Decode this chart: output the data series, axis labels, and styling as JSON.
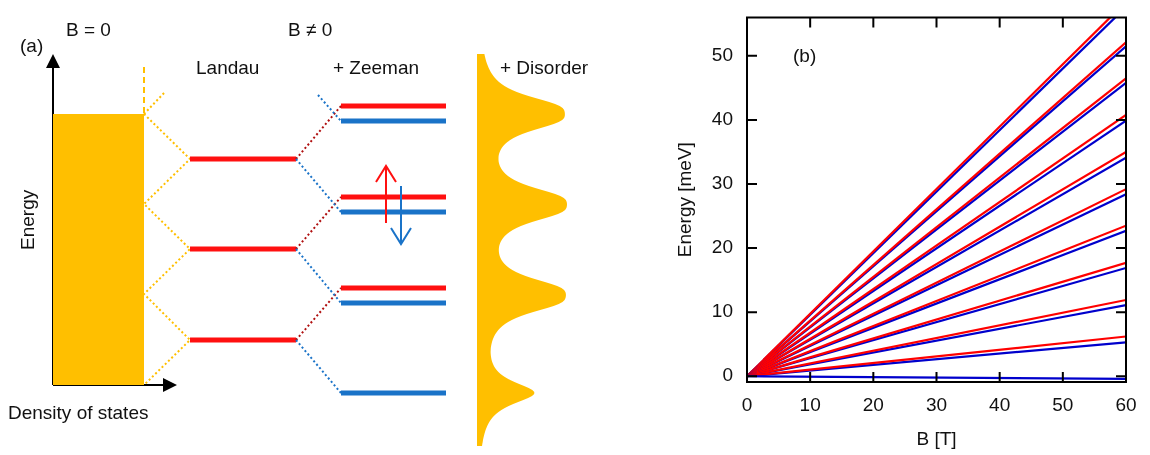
{
  "chart_data": [
    {
      "type": "other",
      "annotations": [
        "(a)",
        "B = 0",
        "B ≠ 0",
        "Landau",
        "+ Zeeman",
        "+ Disorder",
        "Energy",
        "Density of states"
      ]
    },
    {
      "type": "line",
      "xlabel": "B [T]",
      "ylabel": "Energy [meV]",
      "annotations": [
        "(b)"
      ],
      "xlim": [
        0,
        60
      ],
      "ylim": [
        -0.9,
        56
      ],
      "xticks": [
        0,
        10,
        20,
        30,
        40,
        50,
        60
      ],
      "yticks": [
        0,
        10,
        20,
        30,
        40,
        50
      ],
      "grid": false,
      "legend": false,
      "marker": "none",
      "line_style": "solid",
      "series": [
        {
          "color": "#0000cc",
          "x": [
            0,
            60
          ],
          "values": [
            0,
            -0.4
          ]
        },
        {
          "color": "#ff0000",
          "x": [
            0,
            60
          ],
          "values": [
            0,
            6.2
          ]
        },
        {
          "color": "#0000cc",
          "x": [
            0,
            60
          ],
          "values": [
            0,
            5.3
          ]
        },
        {
          "color": "#ff0000",
          "x": [
            0,
            60
          ],
          "values": [
            0,
            11.9
          ]
        },
        {
          "color": "#0000cc",
          "x": [
            0,
            60
          ],
          "values": [
            0,
            11.1
          ]
        },
        {
          "color": "#ff0000",
          "x": [
            0,
            60
          ],
          "values": [
            0,
            17.7
          ]
        },
        {
          "color": "#0000cc",
          "x": [
            0,
            60
          ],
          "values": [
            0,
            16.9
          ]
        },
        {
          "color": "#ff0000",
          "x": [
            0,
            60
          ],
          "values": [
            0,
            23.5
          ]
        },
        {
          "color": "#0000cc",
          "x": [
            0,
            60
          ],
          "values": [
            0,
            22.7
          ]
        },
        {
          "color": "#ff0000",
          "x": [
            0,
            60
          ],
          "values": [
            0,
            29.2
          ]
        },
        {
          "color": "#0000cc",
          "x": [
            0,
            60
          ],
          "values": [
            0,
            28.4
          ]
        },
        {
          "color": "#ff0000",
          "x": [
            0,
            60
          ],
          "values": [
            0,
            35.0
          ]
        },
        {
          "color": "#0000cc",
          "x": [
            0,
            60
          ],
          "values": [
            0,
            34.1
          ]
        },
        {
          "color": "#ff0000",
          "x": [
            0,
            60
          ],
          "values": [
            0,
            40.8
          ]
        },
        {
          "color": "#0000cc",
          "x": [
            0,
            60
          ],
          "values": [
            0,
            39.9
          ]
        },
        {
          "color": "#ff0000",
          "x": [
            0,
            60
          ],
          "values": [
            0,
            46.5
          ]
        },
        {
          "color": "#0000cc",
          "x": [
            0,
            60
          ],
          "values": [
            0,
            45.8
          ]
        },
        {
          "color": "#ff0000",
          "x": [
            0,
            60
          ],
          "values": [
            0,
            52.1
          ]
        },
        {
          "color": "#0000cc",
          "x": [
            0,
            60
          ],
          "values": [
            0,
            51.5
          ]
        },
        {
          "color": "#ff0000",
          "x": [
            0,
            57.5
          ],
          "values": [
            0,
            56
          ]
        },
        {
          "color": "#0000cc",
          "x": [
            0,
            58.3
          ],
          "values": [
            0,
            56
          ]
        }
      ]
    }
  ]
}
